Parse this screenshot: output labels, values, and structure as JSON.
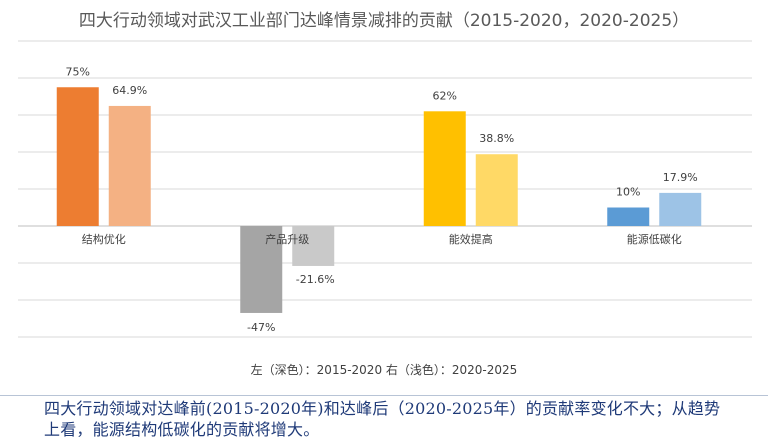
{
  "chart_data": {
    "type": "bar",
    "title": "四大行动领域对武汉工业部门达峰情景减排的贡献（2015-2020，2020-2025）",
    "categories": [
      "结构优化",
      "产品升级",
      "能效提高",
      "能源低碳化"
    ],
    "series": [
      {
        "name": "2015-2020",
        "values": [
          75,
          -47,
          62,
          10
        ],
        "labels": [
          "75%",
          "-47%",
          "62%",
          "10%"
        ]
      },
      {
        "name": "2020-2025",
        "values": [
          64.9,
          -21.6,
          38.8,
          17.9
        ],
        "labels": [
          "64.9%",
          "-21.6%",
          "38.8%",
          "17.9%"
        ]
      }
    ],
    "colors": [
      [
        "#ed7d31",
        "#f4b183"
      ],
      [
        "#a5a5a5",
        "#c9c9c9"
      ],
      [
        "#ffc000",
        "#ffd966"
      ],
      [
        "#5b9bd5",
        "#9dc3e6"
      ]
    ],
    "ylim": [
      -60,
      100
    ],
    "grid": true,
    "legend": "左（深色）：2015-2020  右（浅色）：2020-2025"
  },
  "caption": {
    "line1": "四大行动领域对达峰前(2015-2020年)和达峰后（2020-2025年）的贡献率变化不大；从趋势",
    "line2": "上看，能源结构低碳化的贡献将增大。"
  }
}
